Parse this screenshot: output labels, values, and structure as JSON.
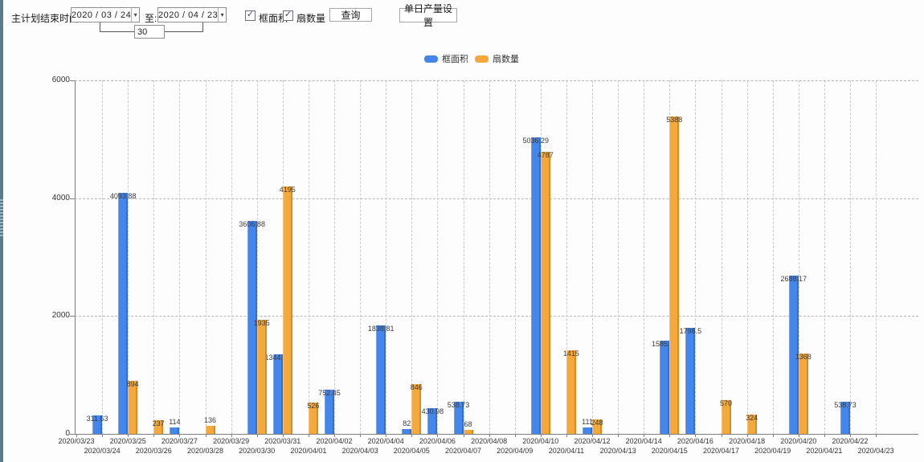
{
  "toolbar": {
    "label_end_time": "主计划结束时间:",
    "date_from": "2020 / 03 / 24",
    "to_label": "至:",
    "date_to": "2020 / 04 / 23",
    "interval_days": "30",
    "checkbox_frame_area_label": "框面积",
    "checkbox_fan_count_label": "扇数量",
    "query_button": "查询",
    "daily_output_button": "单日产量设置"
  },
  "legend": {
    "frame_area": "框面积",
    "fan_count": "扇数量"
  },
  "colors": {
    "frame_area": "#4486ea",
    "fan_count": "#f5a83b",
    "splitter": "#5d7a8a"
  },
  "chart_data": {
    "type": "bar",
    "title": "",
    "xlabel": "",
    "ylabel": "",
    "ylim": [
      0,
      6000
    ],
    "yticks": [
      0,
      2000,
      4000,
      6000
    ],
    "grid": true,
    "legend_position": "top",
    "categories": [
      "2020/03/23",
      "2020/03/24",
      "2020/03/25",
      "2020/03/26",
      "2020/03/27",
      "2020/03/28",
      "2020/03/29",
      "2020/03/30",
      "2020/03/31",
      "2020/04/01",
      "2020/04/02",
      "2020/04/03",
      "2020/04/04",
      "2020/04/05",
      "2020/04/06",
      "2020/04/07",
      "2020/04/08",
      "2020/04/09",
      "2020/04/10",
      "2020/04/11",
      "2020/04/12",
      "2020/04/13",
      "2020/04/14",
      "2020/04/15",
      "2020/04/16",
      "2020/04/17",
      "2020/04/18",
      "2020/04/19",
      "2020/04/20",
      "2020/04/21",
      "2020/04/22",
      "2020/04/23"
    ],
    "series": [
      {
        "name": "框面积",
        "color": "#4486ea",
        "values": [
          null,
          311.63,
          4093.88,
          null,
          114,
          null,
          null,
          3606.88,
          1344.95,
          null,
          752.45,
          null,
          1838.81,
          82,
          430.98,
          538.73,
          null,
          null,
          5036.29,
          null,
          111,
          null,
          null,
          1585.96,
          1798.5,
          null,
          null,
          null,
          2688.17,
          null,
          538.73,
          null
        ]
      },
      {
        "name": "扇数量",
        "color": "#f5a83b",
        "values": [
          null,
          null,
          894,
          237,
          null,
          136,
          null,
          1935,
          4195,
          526,
          null,
          null,
          null,
          846,
          null,
          68,
          null,
          null,
          4787,
          1415,
          248,
          null,
          null,
          5388,
          null,
          570,
          324,
          null,
          1368,
          null,
          null,
          null
        ]
      }
    ]
  }
}
